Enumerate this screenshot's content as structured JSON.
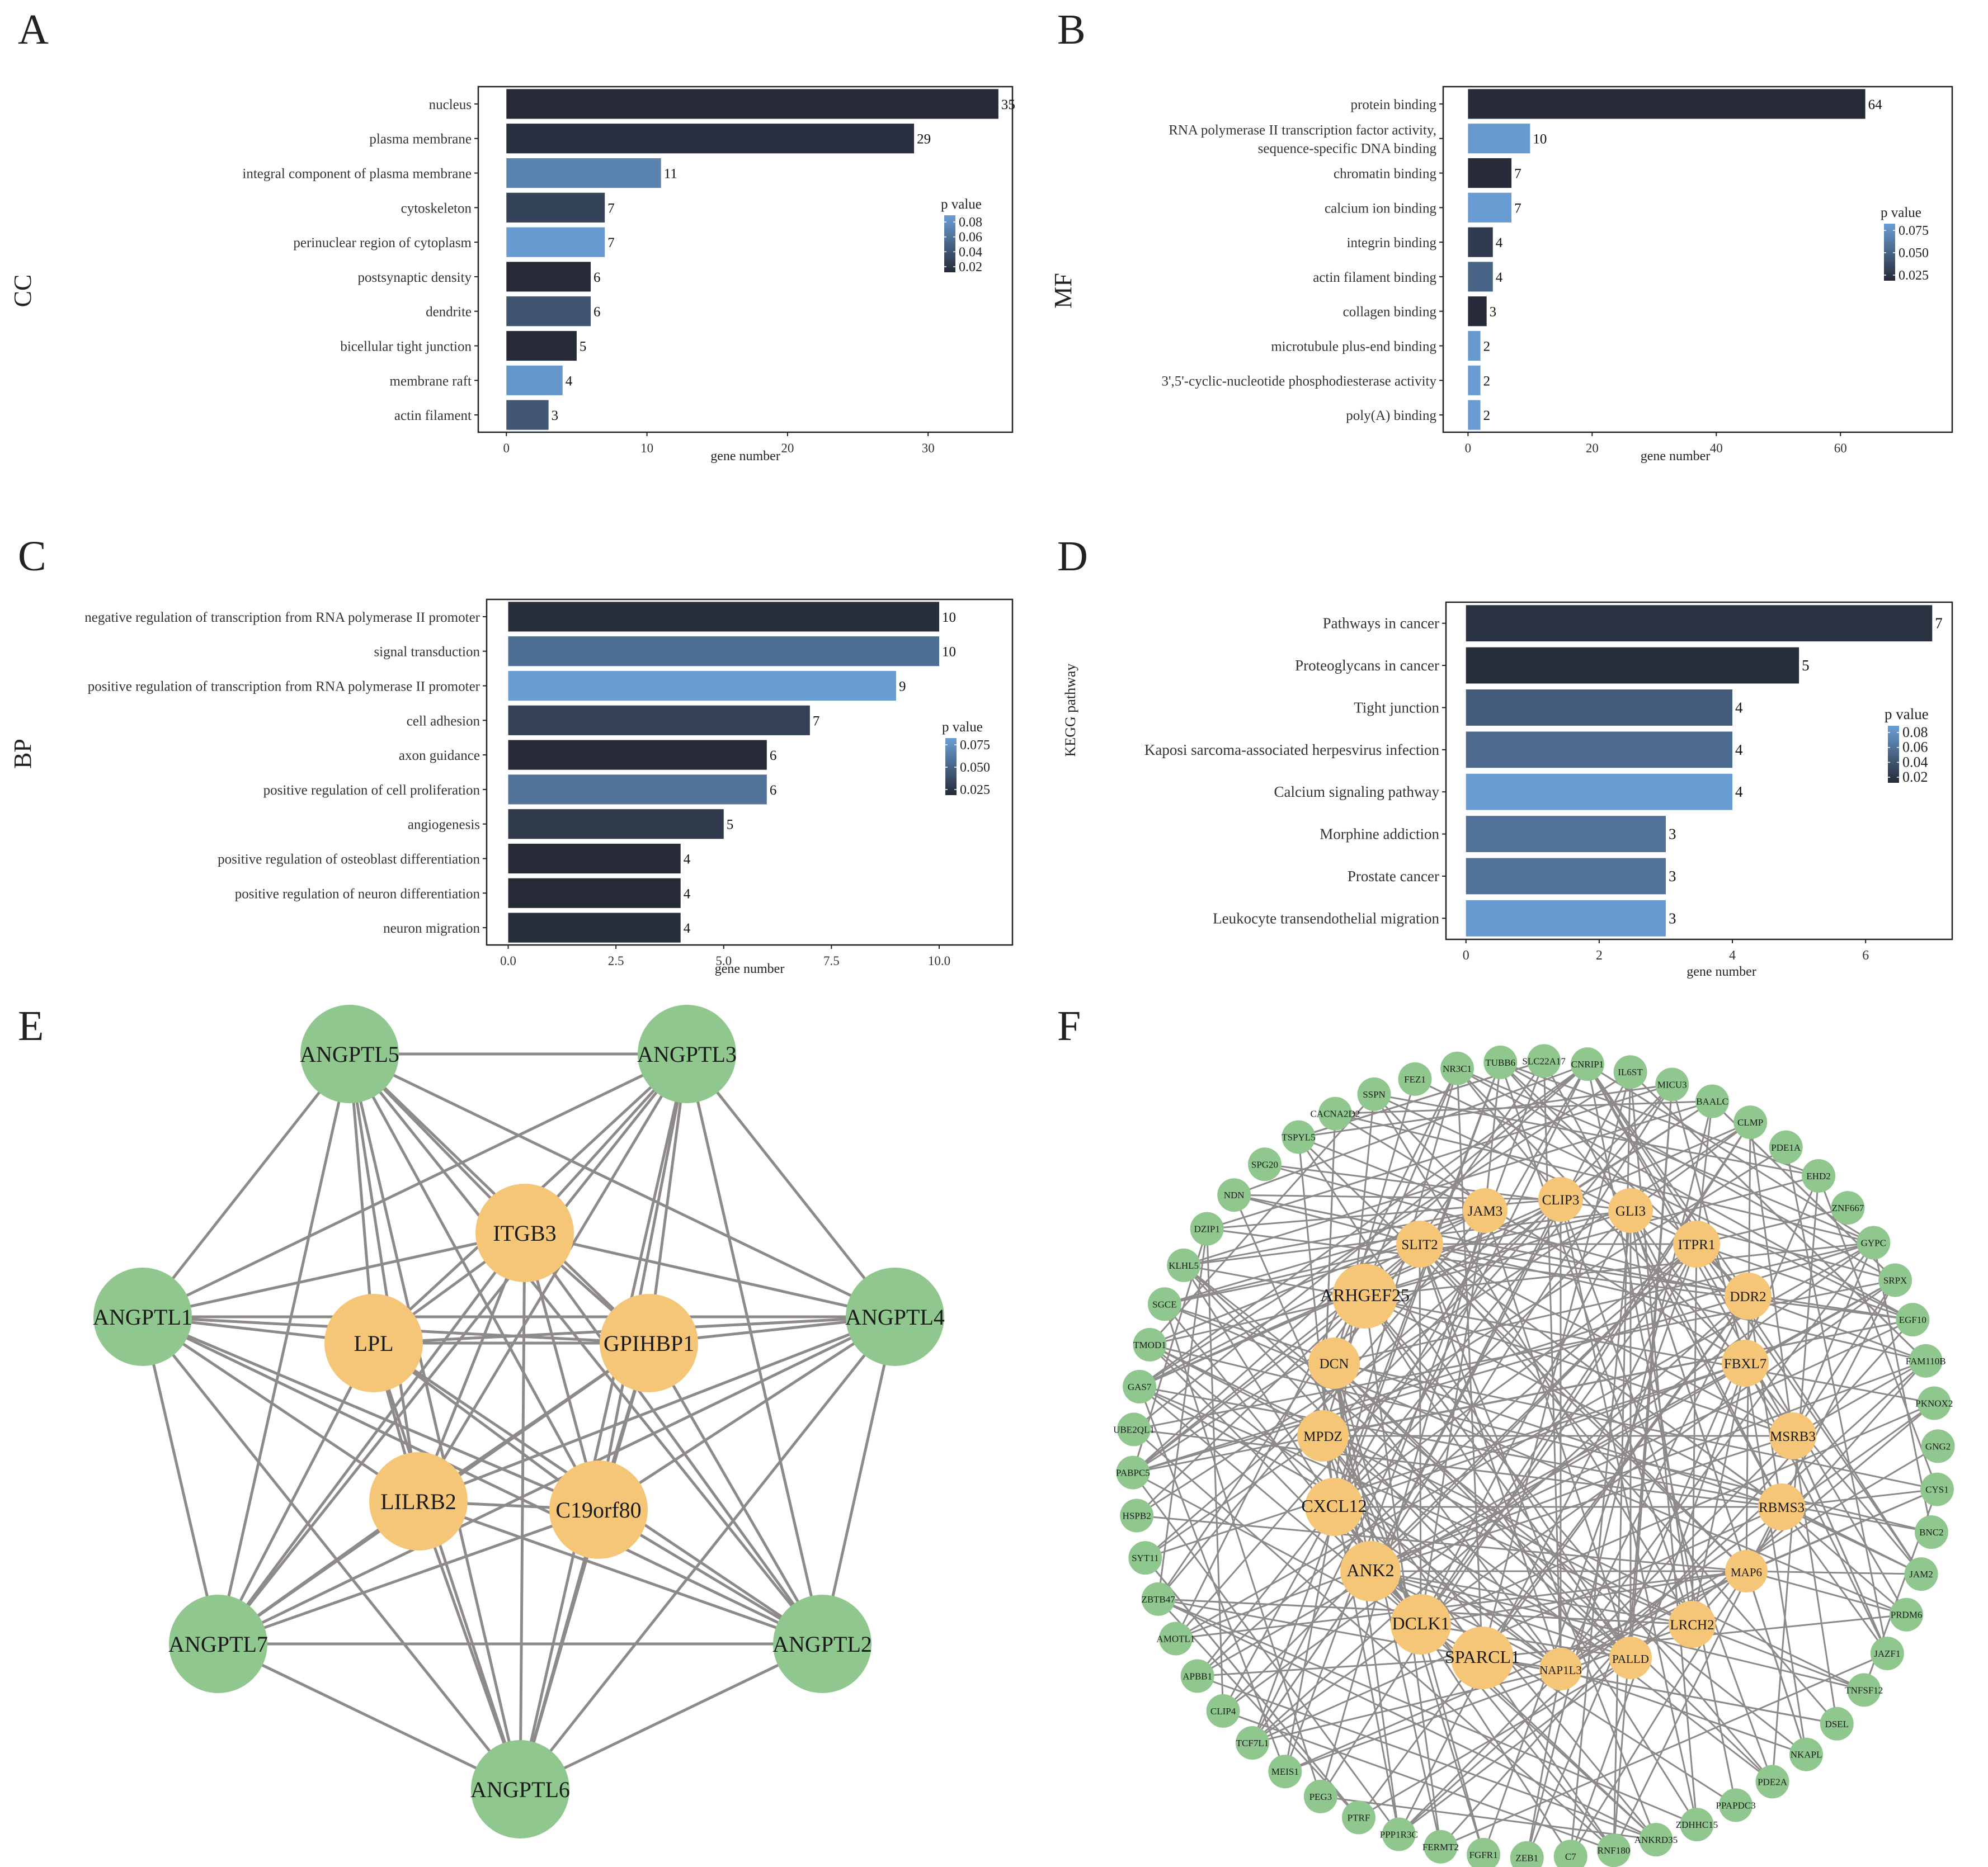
{
  "colors": {
    "dark": "#262a37",
    "light": "#6b9fd6",
    "node_green": "#8fc78e",
    "node_orange": "#f5c677",
    "edge": "#8e8a8a",
    "axis": "#222222"
  },
  "chart_data": [
    {
      "panel": "A",
      "type": "bar",
      "orientation": "horizontal",
      "ylabel": "CC",
      "xlabel": "gene number",
      "categories": [
        "nucleus",
        "plasma membrane",
        "integral component of plasma membrane",
        "cytoskeleton",
        "perinuclear region of cytoplasm",
        "postsynaptic density",
        "dendrite",
        "bicellular tight junction",
        "membrane raft",
        "actin filament"
      ],
      "values": [
        35,
        29,
        11,
        7,
        7,
        6,
        6,
        5,
        4,
        3
      ],
      "value_labels": [
        "35",
        "29",
        "11",
        "7",
        "7",
        "6",
        "6",
        "5",
        "4",
        "3"
      ],
      "p_values": [
        0.003,
        0.018,
        0.068,
        0.03,
        0.082,
        0.003,
        0.04,
        0.003,
        0.08,
        0.042
      ],
      "xlim": [
        -2,
        36
      ],
      "xticks": [
        0,
        10,
        20,
        30
      ],
      "xtick_labels": [
        "0",
        "10",
        "20",
        "30"
      ],
      "legend": {
        "title": "p value",
        "labels": [
          "0.08",
          "0.06",
          "0.04",
          "0.02"
        ],
        "range": [
          0.015,
          0.085
        ]
      }
    },
    {
      "panel": "B",
      "type": "bar",
      "orientation": "horizontal",
      "ylabel": "MF",
      "xlabel": "gene number",
      "categories": [
        "protein binding",
        "RNA polymerase II transcription factor activity,|sequence-specific DNA binding",
        "chromatin binding",
        "calcium ion binding",
        "integrin binding",
        "actin filament binding",
        "collagen binding",
        "microtubule plus-end binding",
        "3',5'-cyclic-nucleotide phosphodiesterase activity",
        "poly(A) binding"
      ],
      "values": [
        64,
        10,
        7,
        7,
        4,
        4,
        3,
        2,
        2,
        2
      ],
      "value_labels": [
        "64",
        "10",
        "7",
        "7",
        "4",
        "4",
        "3",
        "2",
        "2",
        "2"
      ],
      "p_values": [
        0.006,
        0.088,
        0.006,
        0.09,
        0.018,
        0.048,
        0.006,
        0.088,
        0.09,
        0.09
      ],
      "xlim": [
        -4,
        78
      ],
      "xticks": [
        0,
        20,
        40,
        60
      ],
      "xtick_labels": [
        "0",
        "20",
        "40",
        "60"
      ],
      "legend": {
        "title": "p value",
        "labels": [
          "0.075",
          "0.050",
          "0.025"
        ],
        "range": [
          0.005,
          0.092
        ]
      }
    },
    {
      "panel": "C",
      "type": "bar",
      "orientation": "horizontal",
      "ylabel": "BP",
      "xlabel": "gene number",
      "categories": [
        "negative regulation of transcription from RNA polymerase II promoter",
        "signal transduction",
        "positive regulation of transcription from RNA polymerase II promoter",
        "cell adhesion",
        "axon guidance",
        "positive regulation of cell proliferation",
        "angiogenesis",
        "positive regulation of osteoblast differentiation",
        "positive regulation of neuron differentiation",
        "neuron migration"
      ],
      "values": [
        10,
        10,
        9,
        7,
        6,
        6,
        5,
        4,
        4,
        4
      ],
      "value_labels": [
        "10",
        "10",
        "9",
        "7",
        "6",
        "6",
        "5",
        "4",
        "4",
        "4"
      ],
      "p_values": [
        0.006,
        0.055,
        0.09,
        0.02,
        0.003,
        0.058,
        0.015,
        0.003,
        0.003,
        0.005
      ],
      "xlim": [
        -0.5,
        11.7
      ],
      "xticks": [
        0,
        2.5,
        5,
        7.5,
        10
      ],
      "xtick_labels": [
        "0.0",
        "2.5",
        "5.0",
        "7.5",
        "10.0"
      ],
      "legend": {
        "title": "p value",
        "labels": [
          "0.075",
          "0.050",
          "0.025"
        ],
        "range": [
          0.003,
          0.092
        ]
      }
    },
    {
      "panel": "D",
      "type": "bar",
      "orientation": "horizontal",
      "ylabel": "KEGG pathway",
      "xlabel": "gene number",
      "categories": [
        "Pathways in cancer",
        "Proteoglycans in cancer",
        "Tight junction",
        "Kaposi sarcoma-associated herpesvirus infection",
        "Calcium signaling pathway",
        "Morphine addiction",
        "Prostate cancer",
        "Leukocyte transendothelial migration"
      ],
      "values": [
        7,
        5,
        4,
        4,
        4,
        3,
        3,
        3
      ],
      "value_labels": [
        "7",
        "5",
        "4",
        "4",
        "4",
        "3",
        "3",
        "3"
      ],
      "p_values": [
        0.015,
        0.012,
        0.045,
        0.055,
        0.09,
        0.06,
        0.06,
        0.088
      ],
      "xlim": [
        -0.3,
        7.3
      ],
      "xticks": [
        0,
        2,
        4,
        6
      ],
      "xtick_labels": [
        "0",
        "2",
        "4",
        "6"
      ],
      "legend": {
        "title": "p value",
        "labels": [
          "0.08",
          "0.06",
          "0.04",
          "0.02"
        ],
        "range": [
          0.01,
          0.092
        ]
      }
    }
  ],
  "panel_labels": [
    "A",
    "B",
    "C",
    "D",
    "E",
    "F"
  ],
  "network_e": {
    "green_nodes": [
      "ANGPTL5",
      "ANGPTL3",
      "ANGPTL1",
      "ANGPTL4",
      "ANGPTL7",
      "ANGPTL2",
      "ANGPTL6"
    ],
    "orange_nodes": [
      "ITGB3",
      "LPL",
      "GPIHBP1",
      "LILRB2",
      "C19orf80"
    ]
  },
  "network_f": {
    "orange_nodes": [
      "JAM3",
      "CLIP3",
      "GLI3",
      "SLIT2",
      "ITPR1",
      "ARHGEF25",
      "DDR2",
      "DCN",
      "FBXL7",
      "MPDZ",
      "MSRB3",
      "CXCL12",
      "RBMS3",
      "ANK2",
      "MAP6",
      "DCLK1",
      "LRCH2",
      "SPARCL1",
      "NAP1L3",
      "PALLD"
    ],
    "green_nodes": [
      "TUBB6",
      "SLC22A17",
      "CNRIP1",
      "IL6ST",
      "MICU3",
      "BAALC",
      "CLMP",
      "PDE1A",
      "EHD2",
      "ZNF667",
      "GYPC",
      "SRPX",
      "EGF10",
      "FAM110B",
      "PKNOX2",
      "GNG2",
      "CYS1",
      "BNC2",
      "JAM2",
      "PRDM6",
      "JAZF1",
      "TNFSF12",
      "DSEL",
      "NKAPL",
      "PDE2A",
      "PPAPDC3",
      "ZDHHC15",
      "ANKRD35",
      "RNF180",
      "C7",
      "ZEB1",
      "FGFR1",
      "FERMT2",
      "PPP1R3C",
      "PTRF",
      "PEG3",
      "MEIS1",
      "TCF7L1",
      "CLIP4",
      "APBB1",
      "AMOTL1",
      "ZBTB47",
      "SYT11",
      "HSPB2",
      "PABPC5",
      "UBE2QL1",
      "GAS7",
      "TMOD1",
      "SGCE",
      "KLHL5",
      "DZIP1",
      "NDN",
      "SPG20",
      "TSPYL5",
      "CACNA2D2",
      "SSPN",
      "FEZ1",
      "NR3C1"
    ]
  }
}
